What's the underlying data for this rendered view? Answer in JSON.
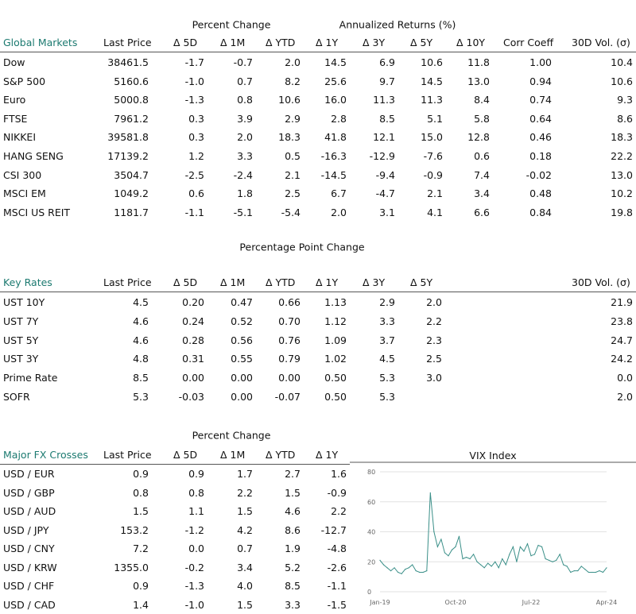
{
  "global": {
    "group_labels": [
      "Percent Change",
      "Annualized Returns (%)"
    ],
    "headers": [
      "Global Markets",
      "Last Price",
      "Δ 5D",
      "Δ 1M",
      "Δ YTD",
      "Δ 1Y",
      "Δ 3Y",
      "Δ 5Y",
      "Δ 10Y",
      "Corr Coeff",
      "30D Vol. (σ)"
    ],
    "rows": [
      [
        "Dow",
        "38461.5",
        "-1.7",
        "-0.7",
        "2.0",
        "14.5",
        "6.9",
        "10.6",
        "11.8",
        "1.00",
        "10.4"
      ],
      [
        "S&P 500",
        "5160.6",
        "-1.0",
        "0.7",
        "8.2",
        "25.6",
        "9.7",
        "14.5",
        "13.0",
        "0.94",
        "10.6"
      ],
      [
        "Euro",
        "5000.8",
        "-1.3",
        "0.8",
        "10.6",
        "16.0",
        "11.3",
        "11.3",
        "8.4",
        "0.74",
        "9.3"
      ],
      [
        "FTSE",
        "7961.2",
        "0.3",
        "3.9",
        "2.9",
        "2.8",
        "8.5",
        "5.1",
        "5.8",
        "0.64",
        "8.6"
      ],
      [
        "NIKKEI",
        "39581.8",
        "0.3",
        "2.0",
        "18.3",
        "41.8",
        "12.1",
        "15.0",
        "12.8",
        "0.46",
        "18.3"
      ],
      [
        "HANG SENG",
        "17139.2",
        "1.2",
        "3.3",
        "0.5",
        "-16.3",
        "-12.9",
        "-7.6",
        "0.6",
        "0.18",
        "22.2"
      ],
      [
        "CSI 300",
        "3504.7",
        "-2.5",
        "-2.4",
        "2.1",
        "-14.5",
        "-9.4",
        "-0.9",
        "7.4",
        "-0.02",
        "13.0"
      ],
      [
        "MSCI EM",
        "1049.2",
        "0.6",
        "1.8",
        "2.5",
        "6.7",
        "-4.7",
        "2.1",
        "3.4",
        "0.48",
        "10.2"
      ],
      [
        "MSCI US REIT",
        "1181.7",
        "-1.1",
        "-5.1",
        "-5.4",
        "2.0",
        "3.1",
        "4.1",
        "6.6",
        "0.84",
        "19.8"
      ]
    ]
  },
  "rates": {
    "group_label": "Percentage Point Change",
    "headers": [
      "Key Rates",
      "Last Price",
      "Δ 5D",
      "Δ 1M",
      "Δ YTD",
      "Δ 1Y",
      "Δ 3Y",
      "Δ 5Y",
      "30D Vol. (σ)"
    ],
    "rows": [
      [
        "UST 10Y",
        "4.5",
        "0.20",
        "0.47",
        "0.66",
        "1.13",
        "2.9",
        "2.0",
        "21.9"
      ],
      [
        "UST 7Y",
        "4.6",
        "0.24",
        "0.52",
        "0.70",
        "1.12",
        "3.3",
        "2.2",
        "23.8"
      ],
      [
        "UST 5Y",
        "4.6",
        "0.28",
        "0.56",
        "0.76",
        "1.09",
        "3.7",
        "2.3",
        "24.7"
      ],
      [
        "UST 3Y",
        "4.8",
        "0.31",
        "0.55",
        "0.79",
        "1.02",
        "4.5",
        "2.5",
        "24.2"
      ],
      [
        "Prime Rate",
        "8.5",
        "0.00",
        "0.00",
        "0.00",
        "0.50",
        "5.3",
        "3.0",
        "0.0"
      ],
      [
        "SOFR",
        "5.3",
        "-0.03",
        "0.00",
        "-0.07",
        "0.50",
        "5.3",
        "",
        "2.0"
      ]
    ]
  },
  "fx": {
    "group_label": "Percent Change",
    "headers": [
      "Major FX Crosses",
      "Last Price",
      "Δ 5D",
      "Δ 1M",
      "Δ YTD",
      "Δ 1Y"
    ],
    "rows": [
      [
        "USD / EUR",
        "0.9",
        "0.9",
        "1.7",
        "2.7",
        "1.6"
      ],
      [
        "USD / GBP",
        "0.8",
        "0.8",
        "2.2",
        "1.5",
        "-0.9"
      ],
      [
        "USD / AUD",
        "1.5",
        "1.1",
        "1.5",
        "4.6",
        "2.2"
      ],
      [
        "USD / JPY",
        "153.2",
        "-1.2",
        "4.2",
        "8.6",
        "-12.7"
      ],
      [
        "USD / CNY",
        "7.2",
        "0.0",
        "0.7",
        "1.9",
        "-4.8"
      ],
      [
        "USD / KRW",
        "1355.0",
        "-0.2",
        "3.4",
        "5.2",
        "-2.6"
      ],
      [
        "USD / CHF",
        "0.9",
        "-1.3",
        "4.0",
        "8.5",
        "-1.1"
      ],
      [
        "USD / CAD",
        "1.4",
        "-1.0",
        "1.5",
        "3.3",
        "-1.5"
      ]
    ]
  },
  "colors": {
    "accent": "#1c7a70",
    "line": "#3a8f88"
  },
  "chart_data": {
    "type": "line",
    "title": "VIX Index",
    "xlabel": "",
    "ylabel": "",
    "ylim": [
      0,
      80
    ],
    "yticks": [
      "0",
      "20",
      "40",
      "60",
      "80"
    ],
    "xticks": [
      "Jan-19",
      "Oct-20",
      "Jul-22",
      "Apr-24"
    ],
    "grid": true,
    "x_start": "Jan-19",
    "x_end": "Apr-24",
    "series": [
      {
        "values": [
          21,
          18,
          16,
          14,
          16,
          13,
          12,
          15,
          16,
          18,
          14,
          13,
          13,
          14,
          66,
          40,
          30,
          35,
          26,
          24,
          28,
          30,
          37,
          22,
          23,
          22,
          25,
          20,
          18,
          16,
          19,
          17,
          20,
          16,
          22,
          18,
          25,
          30,
          20,
          30,
          27,
          32,
          24,
          25,
          31,
          30,
          22,
          21,
          20,
          21,
          25,
          18,
          17,
          13,
          14,
          14,
          17,
          15,
          13,
          13,
          13,
          14,
          13,
          16
        ]
      }
    ]
  }
}
